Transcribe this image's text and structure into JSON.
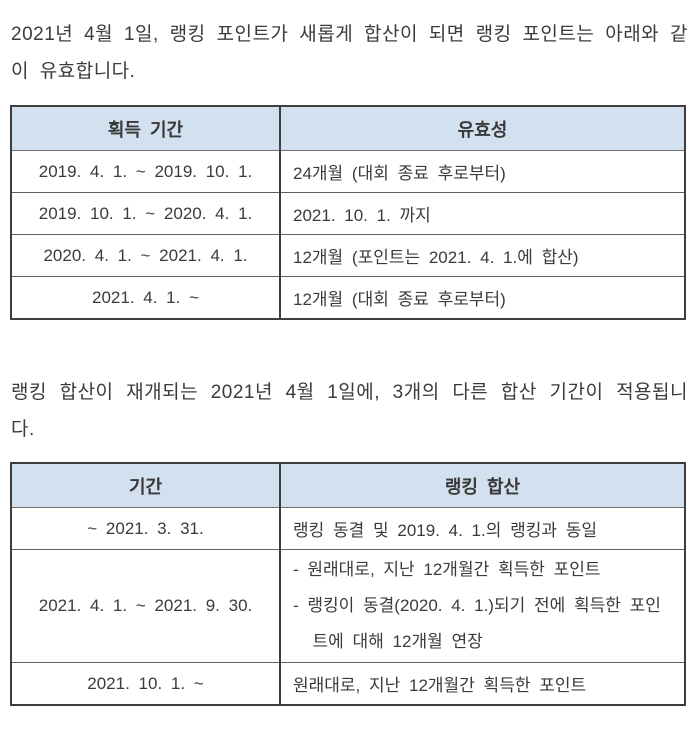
{
  "page": {
    "intro1": "2021년 4월 1일, 랭킹 포인트가 새롭게 합산이 되면 랭킹 포인트는 아래와 같이 유효합니다.",
    "intro2": "랭킹 합산이 재개되는 2021년 4월 1일에, 3개의 다른 합산 기간이 적용됩니다."
  },
  "colors": {
    "header_bg": "#d3e0ef",
    "outer_border": "#3e3e3e",
    "inner_border": "#606060",
    "text": "#3b3b3b"
  },
  "table1": {
    "headers": [
      "획득 기간",
      "유효성"
    ],
    "rows": [
      {
        "period": "2019. 4. 1. ~ 2019. 10. 1.",
        "validity": "24개월 (대회 종료 후로부터)"
      },
      {
        "period": "2019. 10. 1. ~ 2020. 4. 1.",
        "validity": "2021. 10. 1. 까지"
      },
      {
        "period": "2020. 4. 1. ~ 2021. 4. 1.",
        "validity": "12개월 (포인트는 2021. 4. 1.에 합산)"
      },
      {
        "period": "2021. 4. 1. ~",
        "validity": "12개월 (대회 종료 후로부터)"
      }
    ]
  },
  "table2": {
    "headers": [
      "기간",
      "랭킹 합산"
    ],
    "rows": [
      {
        "period": "~ 2021. 3. 31.",
        "summary": "랭킹 동결 및 2019. 4. 1.의 랭킹과 동일"
      },
      {
        "period": "2021. 4. 1. ~ 2021. 9. 30.",
        "items": [
          "- 원래대로, 지난 12개월간 획득한 포인트",
          "- 랭킹이 동결(2020. 4. 1.)되기 전에 획득한 포인트에 대해 12개월 연장"
        ]
      },
      {
        "period": "2021. 10. 1. ~",
        "summary": "원래대로, 지난 12개월간 획득한 포인트"
      }
    ]
  }
}
